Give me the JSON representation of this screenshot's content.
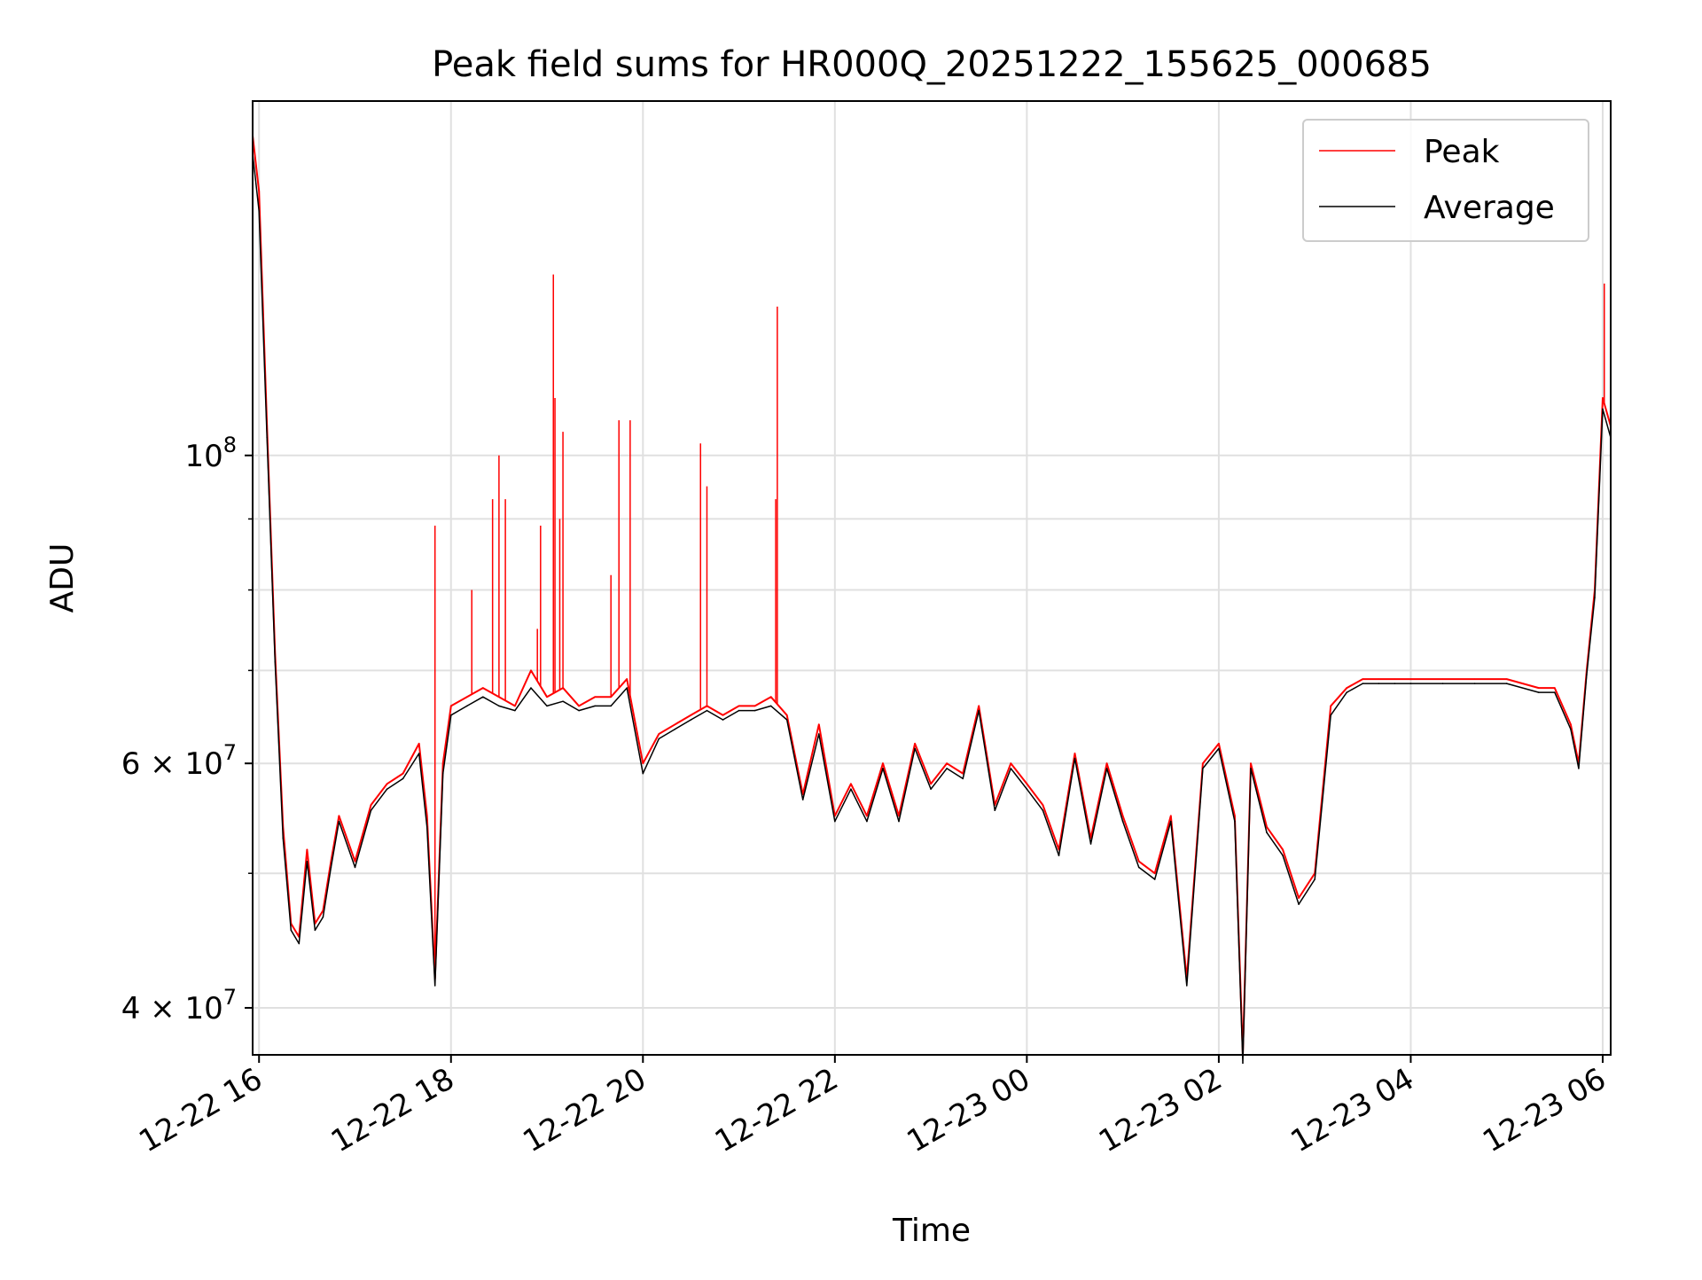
{
  "chart_data": {
    "type": "line",
    "title": "Peak field sums for HR000Q_20251222_155625_000685",
    "xlabel": "Time",
    "ylabel": "ADU",
    "yscale": "log",
    "ylim": [
      37000000,
      180000000
    ],
    "xlim": [
      "2025-12-22 15:56",
      "2025-12-23 06:05"
    ],
    "grid": true,
    "legend_position": "top-right",
    "x_ticks": [
      "12-22 16",
      "12-22 18",
      "12-22 20",
      "12-22 22",
      "12-23 00",
      "12-23 02",
      "12-23 04",
      "12-23 06"
    ],
    "y_ticks": [
      {
        "label_base": "10",
        "label_exp": "8",
        "value": 100000000
      },
      {
        "label_base": "6 × 10",
        "label_exp": "7",
        "value": 60000000
      },
      {
        "label_base": "4 × 10",
        "label_exp": "7",
        "value": 40000000
      }
    ],
    "x": [
      "2025-12-22 15:56",
      "2025-12-22 16:00",
      "2025-12-22 16:05",
      "2025-12-22 16:10",
      "2025-12-22 16:15",
      "2025-12-22 16:20",
      "2025-12-22 16:25",
      "2025-12-22 16:30",
      "2025-12-22 16:35",
      "2025-12-22 16:40",
      "2025-12-22 16:45",
      "2025-12-22 16:50",
      "2025-12-22 17:00",
      "2025-12-22 17:10",
      "2025-12-22 17:20",
      "2025-12-22 17:30",
      "2025-12-22 17:40",
      "2025-12-22 17:45",
      "2025-12-22 17:50",
      "2025-12-22 17:55",
      "2025-12-22 18:00",
      "2025-12-22 18:10",
      "2025-12-22 18:20",
      "2025-12-22 18:30",
      "2025-12-22 18:40",
      "2025-12-22 18:50",
      "2025-12-22 19:00",
      "2025-12-22 19:10",
      "2025-12-22 19:20",
      "2025-12-22 19:30",
      "2025-12-22 19:40",
      "2025-12-22 19:50",
      "2025-12-22 20:00",
      "2025-12-22 20:10",
      "2025-12-22 20:20",
      "2025-12-22 20:30",
      "2025-12-22 20:40",
      "2025-12-22 20:50",
      "2025-12-22 21:00",
      "2025-12-22 21:10",
      "2025-12-22 21:20",
      "2025-12-22 21:30",
      "2025-12-22 21:40",
      "2025-12-22 21:50",
      "2025-12-22 22:00",
      "2025-12-22 22:10",
      "2025-12-22 22:20",
      "2025-12-22 22:30",
      "2025-12-22 22:40",
      "2025-12-22 22:50",
      "2025-12-22 23:00",
      "2025-12-22 23:10",
      "2025-12-22 23:20",
      "2025-12-22 23:30",
      "2025-12-22 23:40",
      "2025-12-22 23:50",
      "2025-12-23 00:00",
      "2025-12-23 00:10",
      "2025-12-23 00:20",
      "2025-12-23 00:30",
      "2025-12-23 00:40",
      "2025-12-23 00:50",
      "2025-12-23 01:00",
      "2025-12-23 01:10",
      "2025-12-23 01:20",
      "2025-12-23 01:30",
      "2025-12-23 01:40",
      "2025-12-23 01:50",
      "2025-12-23 02:00",
      "2025-12-23 02:10",
      "2025-12-23 02:15",
      "2025-12-23 02:20",
      "2025-12-23 02:30",
      "2025-12-23 02:40",
      "2025-12-23 02:50",
      "2025-12-23 03:00",
      "2025-12-23 03:10",
      "2025-12-23 03:20",
      "2025-12-23 03:30",
      "2025-12-23 03:40",
      "2025-12-23 03:50",
      "2025-12-23 04:00",
      "2025-12-23 04:20",
      "2025-12-23 04:40",
      "2025-12-23 05:00",
      "2025-12-23 05:20",
      "2025-12-23 05:30",
      "2025-12-23 05:40",
      "2025-12-23 05:45",
      "2025-12-23 05:50",
      "2025-12-23 05:55",
      "2025-12-23 06:00",
      "2025-12-23 06:05"
    ],
    "series": [
      {
        "name": "Peak",
        "color": "#ff0000",
        "values": [
          170000000,
          155000000,
          105000000,
          72000000,
          54000000,
          46000000,
          45000000,
          52000000,
          46000000,
          47000000,
          51000000,
          55000000,
          51000000,
          56000000,
          58000000,
          59000000,
          62000000,
          55000000,
          42000000,
          60000000,
          66000000,
          67000000,
          68000000,
          67000000,
          66000000,
          70000000,
          67000000,
          68000000,
          66000000,
          67000000,
          67000000,
          69000000,
          60000000,
          63000000,
          64000000,
          65000000,
          66000000,
          65000000,
          66000000,
          66000000,
          67000000,
          65000000,
          57000000,
          64000000,
          55000000,
          58000000,
          55000000,
          60000000,
          55000000,
          62000000,
          58000000,
          60000000,
          59000000,
          66000000,
          56000000,
          60000000,
          58000000,
          56000000,
          52000000,
          61000000,
          53000000,
          60000000,
          55000000,
          51000000,
          50000000,
          55000000,
          42000000,
          60000000,
          62000000,
          55000000,
          37000000,
          60000000,
          54000000,
          52000000,
          48000000,
          50000000,
          66000000,
          68000000,
          69000000,
          69000000,
          69000000,
          69000000,
          69000000,
          69000000,
          69000000,
          68000000,
          68000000,
          64000000,
          60000000,
          70000000,
          80000000,
          110000000,
          105000000
        ]
      },
      {
        "name": "Average",
        "color": "#000000",
        "values": [
          165000000,
          150000000,
          103000000,
          71000000,
          53000000,
          45500000,
          44500000,
          51000000,
          45500000,
          46500000,
          50500000,
          54500000,
          50500000,
          55500000,
          57500000,
          58500000,
          61000000,
          54000000,
          41500000,
          59000000,
          65000000,
          66000000,
          67000000,
          66000000,
          65500000,
          68000000,
          66000000,
          66500000,
          65500000,
          66000000,
          66000000,
          68000000,
          59000000,
          62500000,
          63500000,
          64500000,
          65500000,
          64500000,
          65500000,
          65500000,
          66000000,
          64500000,
          56500000,
          63000000,
          54500000,
          57500000,
          54500000,
          59500000,
          54500000,
          61500000,
          57500000,
          59500000,
          58500000,
          65500000,
          55500000,
          59500000,
          57500000,
          55500000,
          51500000,
          60500000,
          52500000,
          59500000,
          54500000,
          50500000,
          49500000,
          54500000,
          41500000,
          59500000,
          61500000,
          54500000,
          36500000,
          59500000,
          53500000,
          51500000,
          47500000,
          49500000,
          65000000,
          67500000,
          68500000,
          68500000,
          68500000,
          68500000,
          68500000,
          68500000,
          68500000,
          67500000,
          67500000,
          63500000,
          59500000,
          69500000,
          79000000,
          108000000,
          103000000
        ]
      }
    ],
    "peak_spikes": [
      {
        "x": "2025-12-22 17:50",
        "value": 89000000
      },
      {
        "x": "2025-12-22 18:13",
        "value": 80000000
      },
      {
        "x": "2025-12-22 18:26",
        "value": 93000000
      },
      {
        "x": "2025-12-22 18:30",
        "value": 100000000
      },
      {
        "x": "2025-12-22 18:34",
        "value": 93000000
      },
      {
        "x": "2025-12-22 18:54",
        "value": 75000000
      },
      {
        "x": "2025-12-22 18:56",
        "value": 89000000
      },
      {
        "x": "2025-12-22 19:04",
        "value": 135000000
      },
      {
        "x": "2025-12-22 19:05",
        "value": 110000000
      },
      {
        "x": "2025-12-22 19:08",
        "value": 90000000
      },
      {
        "x": "2025-12-22 19:10",
        "value": 104000000
      },
      {
        "x": "2025-12-22 19:40",
        "value": 82000000
      },
      {
        "x": "2025-12-22 19:45",
        "value": 106000000
      },
      {
        "x": "2025-12-22 19:52",
        "value": 106000000
      },
      {
        "x": "2025-12-22 20:36",
        "value": 102000000
      },
      {
        "x": "2025-12-22 20:40",
        "value": 95000000
      },
      {
        "x": "2025-12-22 21:24",
        "value": 128000000
      },
      {
        "x": "2025-12-22 21:23",
        "value": 93000000
      },
      {
        "x": "2025-12-23 06:01",
        "value": 133000000
      }
    ]
  }
}
